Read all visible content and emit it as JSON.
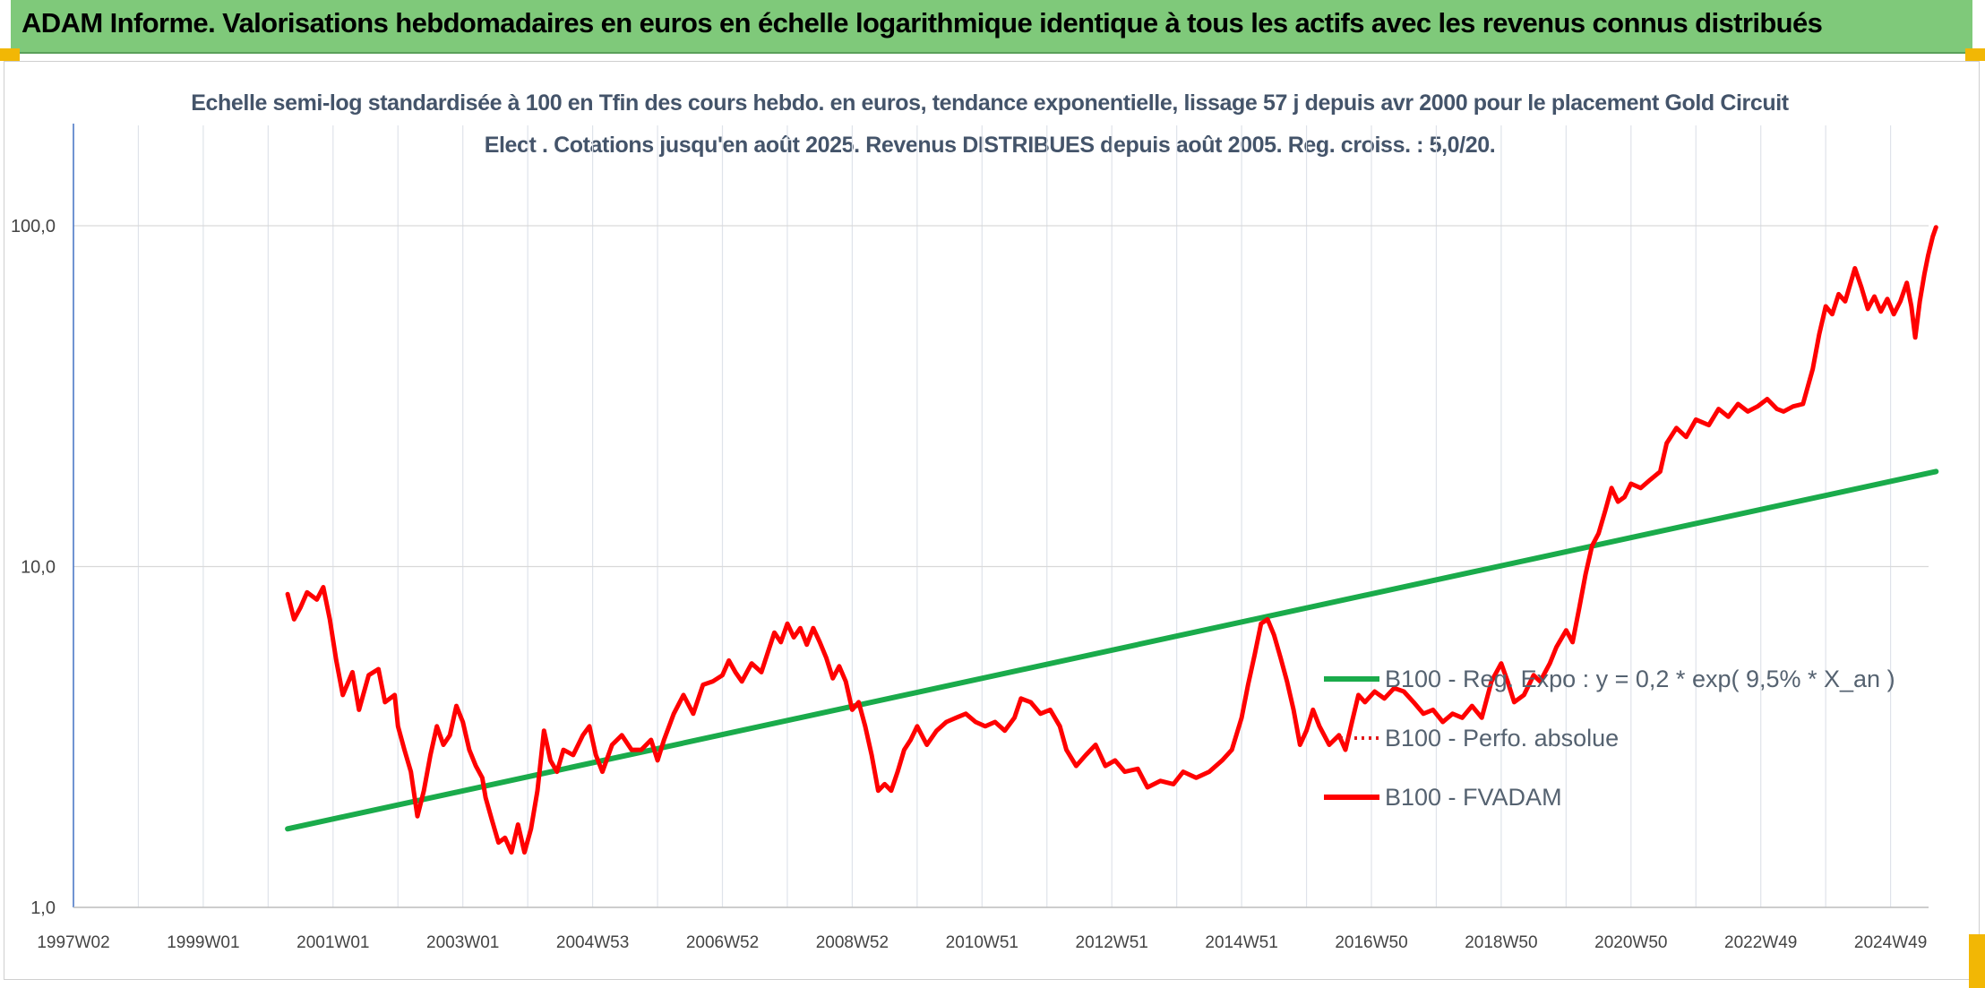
{
  "header": {
    "title": "ADAM Informe. Valorisations hebdomadaires en euros en échelle logarithmique identique à tous les actifs avec les revenus connus distribués"
  },
  "colors": {
    "header_bg": "#7fc97a",
    "accent_orange": "#f2b705",
    "series_regression": "#1aab4b",
    "series_perfo": "#e31a1c",
    "series_fvadam": "#ff0000"
  },
  "chart_data": {
    "type": "line",
    "title": "Echelle semi-log standardisée à 100 en Tfin des cours hebdo. en euros, tendance exponentielle, lissage 57 j depuis avr 2000 pour le placement Gold Circuit Elect . Cotations jusqu'en août 2025. Revenus DISTRIBUES depuis août 2005. Reg. croiss. : 5,0/20.",
    "xlabel": "",
    "ylabel": "",
    "y_scale": "log",
    "ylim": [
      1,
      100
    ],
    "xlim": [
      1997.0,
      2025.7
    ],
    "grid": true,
    "legend_position": "right",
    "y_ticks": [
      "1,0",
      "10,0",
      "100,0"
    ],
    "y_tick_values": [
      1,
      10,
      100
    ],
    "x_ticks": [
      "1997W02",
      "1999W01",
      "2001W01",
      "2003W01",
      "2004W53",
      "2006W52",
      "2008W52",
      "2010W51",
      "2012W51",
      "2014W51",
      "2016W50",
      "2018W50",
      "2020W50",
      "2022W49",
      "2024W49"
    ],
    "x_tick_values": [
      1997.0,
      1999.0,
      2001.0,
      2003.0,
      2005.0,
      2007.0,
      2009.0,
      2011.0,
      2013.0,
      2015.0,
      2017.0,
      2019.0,
      2021.0,
      2023.0,
      2025.0
    ],
    "series": [
      {
        "name": "B100 - Reg. Expo : y = 0,2 * exp( 9,5% *  X_an )",
        "color": "#1aab4b",
        "style": "solid",
        "points": [
          [
            2000.3,
            1.7
          ],
          [
            2025.7,
            19.0
          ]
        ]
      },
      {
        "name": "B100 - Perfo. absolue",
        "color": "#e31a1c",
        "style": "dotted",
        "points": []
      },
      {
        "name": "B100 - FVADAM",
        "color": "#ff0000",
        "style": "solid",
        "points": [
          [
            2000.3,
            8.3
          ],
          [
            2000.4,
            7.0
          ],
          [
            2000.5,
            7.6
          ],
          [
            2000.6,
            8.4
          ],
          [
            2000.75,
            8.0
          ],
          [
            2000.85,
            8.7
          ],
          [
            2000.95,
            7.0
          ],
          [
            2001.05,
            5.3
          ],
          [
            2001.15,
            4.2
          ],
          [
            2001.3,
            4.9
          ],
          [
            2001.4,
            3.8
          ],
          [
            2001.55,
            4.8
          ],
          [
            2001.7,
            5.0
          ],
          [
            2001.8,
            4.0
          ],
          [
            2001.95,
            4.2
          ],
          [
            2002.0,
            3.4
          ],
          [
            2002.1,
            2.9
          ],
          [
            2002.2,
            2.5
          ],
          [
            2002.3,
            1.85
          ],
          [
            2002.4,
            2.2
          ],
          [
            2002.5,
            2.8
          ],
          [
            2002.6,
            3.4
          ],
          [
            2002.7,
            3.0
          ],
          [
            2002.8,
            3.2
          ],
          [
            2002.9,
            3.9
          ],
          [
            2003.0,
            3.5
          ],
          [
            2003.1,
            2.9
          ],
          [
            2003.2,
            2.6
          ],
          [
            2003.3,
            2.4
          ],
          [
            2003.35,
            2.1
          ],
          [
            2003.45,
            1.8
          ],
          [
            2003.55,
            1.55
          ],
          [
            2003.65,
            1.6
          ],
          [
            2003.75,
            1.45
          ],
          [
            2003.85,
            1.75
          ],
          [
            2003.95,
            1.45
          ],
          [
            2004.05,
            1.7
          ],
          [
            2004.15,
            2.2
          ],
          [
            2004.25,
            3.3
          ],
          [
            2004.35,
            2.7
          ],
          [
            2004.45,
            2.5
          ],
          [
            2004.55,
            2.9
          ],
          [
            2004.7,
            2.8
          ],
          [
            2004.85,
            3.2
          ],
          [
            2004.95,
            3.4
          ],
          [
            2005.05,
            2.8
          ],
          [
            2005.15,
            2.5
          ],
          [
            2005.3,
            3.0
          ],
          [
            2005.45,
            3.2
          ],
          [
            2005.6,
            2.9
          ],
          [
            2005.75,
            2.9
          ],
          [
            2005.9,
            3.1
          ],
          [
            2006.0,
            2.7
          ],
          [
            2006.1,
            3.1
          ],
          [
            2006.25,
            3.7
          ],
          [
            2006.4,
            4.2
          ],
          [
            2006.55,
            3.7
          ],
          [
            2006.7,
            4.5
          ],
          [
            2006.85,
            4.6
          ],
          [
            2007.0,
            4.8
          ],
          [
            2007.1,
            5.3
          ],
          [
            2007.2,
            4.9
          ],
          [
            2007.3,
            4.6
          ],
          [
            2007.45,
            5.2
          ],
          [
            2007.6,
            4.9
          ],
          [
            2007.7,
            5.6
          ],
          [
            2007.8,
            6.4
          ],
          [
            2007.9,
            6.0
          ],
          [
            2008.0,
            6.8
          ],
          [
            2008.1,
            6.2
          ],
          [
            2008.2,
            6.6
          ],
          [
            2008.3,
            5.9
          ],
          [
            2008.4,
            6.6
          ],
          [
            2008.5,
            6.0
          ],
          [
            2008.6,
            5.4
          ],
          [
            2008.7,
            4.7
          ],
          [
            2008.8,
            5.1
          ],
          [
            2008.9,
            4.6
          ],
          [
            2009.0,
            3.8
          ],
          [
            2009.1,
            4.0
          ],
          [
            2009.2,
            3.4
          ],
          [
            2009.3,
            2.8
          ],
          [
            2009.4,
            2.2
          ],
          [
            2009.5,
            2.3
          ],
          [
            2009.6,
            2.2
          ],
          [
            2009.7,
            2.5
          ],
          [
            2009.8,
            2.9
          ],
          [
            2009.9,
            3.1
          ],
          [
            2010.0,
            3.4
          ],
          [
            2010.15,
            3.0
          ],
          [
            2010.3,
            3.3
          ],
          [
            2010.45,
            3.5
          ],
          [
            2010.6,
            3.6
          ],
          [
            2010.75,
            3.7
          ],
          [
            2010.9,
            3.5
          ],
          [
            2011.05,
            3.4
          ],
          [
            2011.2,
            3.5
          ],
          [
            2011.35,
            3.3
          ],
          [
            2011.5,
            3.6
          ],
          [
            2011.6,
            4.1
          ],
          [
            2011.75,
            4.0
          ],
          [
            2011.9,
            3.7
          ],
          [
            2012.05,
            3.8
          ],
          [
            2012.2,
            3.4
          ],
          [
            2012.3,
            2.9
          ],
          [
            2012.45,
            2.6
          ],
          [
            2012.6,
            2.8
          ],
          [
            2012.75,
            3.0
          ],
          [
            2012.9,
            2.6
          ],
          [
            2013.05,
            2.7
          ],
          [
            2013.2,
            2.5
          ],
          [
            2013.4,
            2.55
          ],
          [
            2013.55,
            2.25
          ],
          [
            2013.75,
            2.35
          ],
          [
            2013.95,
            2.3
          ],
          [
            2014.1,
            2.5
          ],
          [
            2014.3,
            2.4
          ],
          [
            2014.5,
            2.5
          ],
          [
            2014.7,
            2.7
          ],
          [
            2014.85,
            2.9
          ],
          [
            2015.0,
            3.6
          ],
          [
            2015.1,
            4.5
          ],
          [
            2015.2,
            5.5
          ],
          [
            2015.3,
            6.8
          ],
          [
            2015.4,
            7.0
          ],
          [
            2015.5,
            6.3
          ],
          [
            2015.6,
            5.4
          ],
          [
            2015.7,
            4.6
          ],
          [
            2015.8,
            3.8
          ],
          [
            2015.9,
            3.0
          ],
          [
            2016.0,
            3.3
          ],
          [
            2016.1,
            3.8
          ],
          [
            2016.2,
            3.4
          ],
          [
            2016.35,
            3.0
          ],
          [
            2016.5,
            3.2
          ],
          [
            2016.6,
            2.9
          ],
          [
            2016.7,
            3.5
          ],
          [
            2016.8,
            4.2
          ],
          [
            2016.9,
            4.0
          ],
          [
            2017.05,
            4.3
          ],
          [
            2017.2,
            4.1
          ],
          [
            2017.35,
            4.4
          ],
          [
            2017.5,
            4.3
          ],
          [
            2017.65,
            4.0
          ],
          [
            2017.8,
            3.7
          ],
          [
            2017.95,
            3.8
          ],
          [
            2018.1,
            3.5
          ],
          [
            2018.25,
            3.7
          ],
          [
            2018.4,
            3.6
          ],
          [
            2018.55,
            3.9
          ],
          [
            2018.7,
            3.6
          ],
          [
            2018.85,
            4.6
          ],
          [
            2019.0,
            5.2
          ],
          [
            2019.1,
            4.6
          ],
          [
            2019.2,
            4.0
          ],
          [
            2019.35,
            4.2
          ],
          [
            2019.5,
            4.8
          ],
          [
            2019.6,
            4.6
          ],
          [
            2019.75,
            5.2
          ],
          [
            2019.85,
            5.8
          ],
          [
            2020.0,
            6.5
          ],
          [
            2020.1,
            6.0
          ],
          [
            2020.2,
            7.5
          ],
          [
            2020.3,
            9.5
          ],
          [
            2020.4,
            11.5
          ],
          [
            2020.5,
            12.5
          ],
          [
            2020.6,
            14.5
          ],
          [
            2020.7,
            17.0
          ],
          [
            2020.8,
            15.5
          ],
          [
            2020.9,
            16.0
          ],
          [
            2021.0,
            17.5
          ],
          [
            2021.15,
            17.0
          ],
          [
            2021.3,
            18.0
          ],
          [
            2021.45,
            19.0
          ],
          [
            2021.55,
            23.0
          ],
          [
            2021.7,
            25.5
          ],
          [
            2021.85,
            24.0
          ],
          [
            2022.0,
            27.0
          ],
          [
            2022.2,
            26.0
          ],
          [
            2022.35,
            29.0
          ],
          [
            2022.5,
            27.5
          ],
          [
            2022.65,
            30.0
          ],
          [
            2022.8,
            28.5
          ],
          [
            2022.95,
            29.5
          ],
          [
            2023.1,
            31.0
          ],
          [
            2023.25,
            29.0
          ],
          [
            2023.35,
            28.5
          ],
          [
            2023.5,
            29.5
          ],
          [
            2023.65,
            30.0
          ],
          [
            2023.8,
            38.0
          ],
          [
            2023.9,
            48.0
          ],
          [
            2024.0,
            58.0
          ],
          [
            2024.1,
            55.0
          ],
          [
            2024.2,
            63.0
          ],
          [
            2024.3,
            60.0
          ],
          [
            2024.45,
            75.0
          ],
          [
            2024.55,
            66.0
          ],
          [
            2024.65,
            57.0
          ],
          [
            2024.75,
            62.0
          ],
          [
            2024.85,
            56.0
          ],
          [
            2024.95,
            61.0
          ],
          [
            2025.05,
            55.0
          ],
          [
            2025.15,
            60.0
          ],
          [
            2025.25,
            68.0
          ],
          [
            2025.32,
            58.0
          ],
          [
            2025.38,
            47.0
          ],
          [
            2025.45,
            60.0
          ],
          [
            2025.52,
            72.0
          ],
          [
            2025.58,
            82.0
          ],
          [
            2025.65,
            93.0
          ],
          [
            2025.7,
            99.0
          ]
        ]
      }
    ]
  }
}
